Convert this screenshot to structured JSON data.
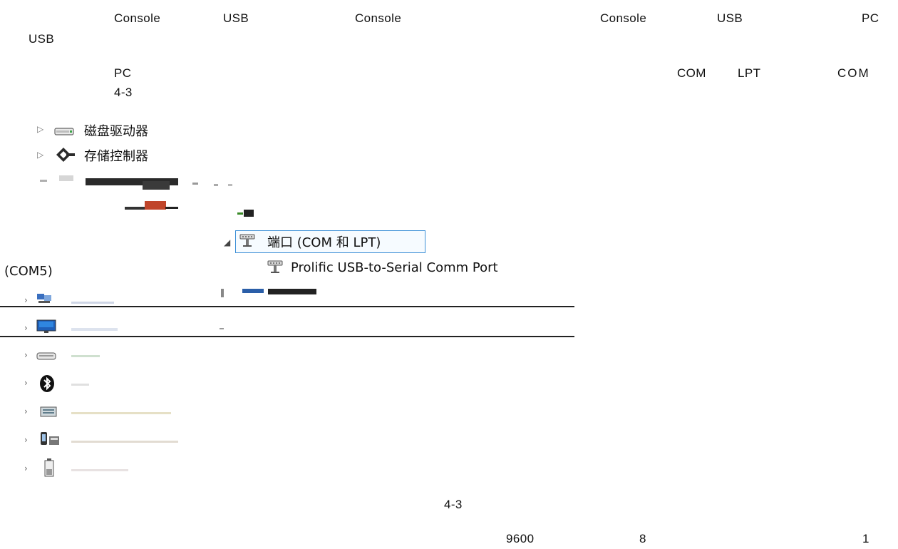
{
  "paragraph1": {
    "w1": "Console",
    "w2": "USB",
    "w3": "Console",
    "w4": "Console",
    "w5": "USB",
    "w6": "PC",
    "w7": "USB"
  },
  "paragraph2": {
    "w1": "PC",
    "w2": "COM",
    "w3": "LPT",
    "w4": "COM",
    "w5": "4-3"
  },
  "device_tree": {
    "disk_drives": "磁盘驱动器",
    "storage_controllers": "存储控制器",
    "ports_node": "端口 (COM 和 LPT)",
    "port_device": "Prolific USB-to-Serial Comm Port",
    "port_device_suffix": "(COM5)"
  },
  "figure_caption": "4-3",
  "paragraph3": {
    "baud": "9600",
    "bits": "8",
    "stop": "1"
  },
  "colors": {
    "selection_border": "#3b8fd6",
    "text": "#111111"
  }
}
